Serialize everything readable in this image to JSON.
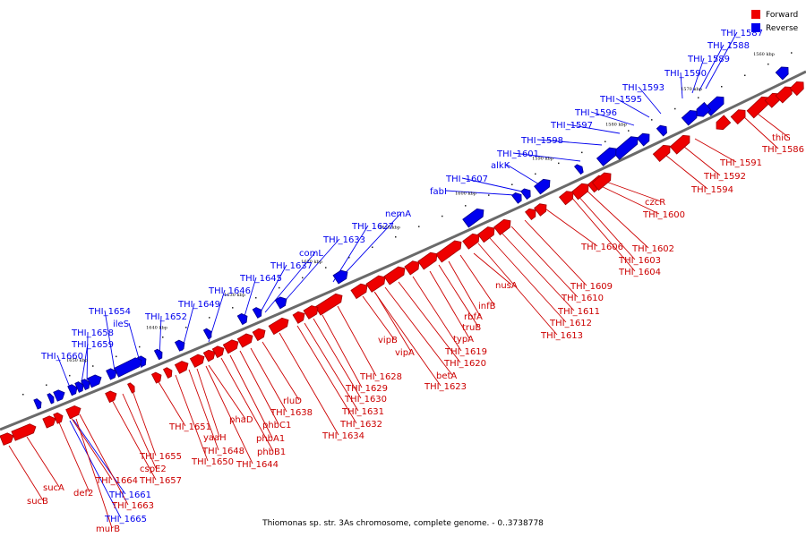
{
  "legend": [
    {
      "label": "Forward",
      "color": "#ee0000"
    },
    {
      "label": "Reverse",
      "color": "#0000ee"
    }
  ],
  "caption": "Thiomonas sp. str. 3As chromosome, complete genome. - 0..3738778",
  "kbp_ticks": [
    "1560 kbp",
    "1570 kbp",
    "1580 kbp",
    "1590 kbp",
    "1600 kbp",
    "1610 kbp",
    "1620 kbp",
    "1630 kbp",
    "1640 kbp",
    "1650 kbp"
  ],
  "reverse_labels": [
    "THI_1587",
    "THI_1588",
    "THI_1589",
    "THI_1590",
    "THI_1593",
    "THI_1595",
    "THI_1596",
    "THI_1597",
    "THI_1598",
    "THI_1601",
    "alkK",
    "THI_1607",
    "fabI",
    "nemA",
    "THI_1627",
    "THI_1633",
    "comL",
    "THI_1637",
    "THI_1645",
    "THI_1646",
    "THI_1649",
    "THI_1652",
    "ileS",
    "THI_1654",
    "THI_1658",
    "THI_1659",
    "THI_1660",
    "THI_1661",
    "THI_1665"
  ],
  "forward_labels": [
    "thiG",
    "THI_1586",
    "THI_1591",
    "THI_1592",
    "THI_1594",
    "czcR",
    "THI_1600",
    "THI_1602",
    "THI_1603",
    "THI_1604",
    "THI_1606",
    "THI_1609",
    "THI_1610",
    "THI_1611",
    "THI_1612",
    "THI_1613",
    "nusA",
    "infB",
    "rbfA",
    "truB",
    "typA",
    "THI_1619",
    "THI_1620",
    "betA",
    "THI_1623",
    "vipB",
    "vipA",
    "THI_1628",
    "THI_1629",
    "THI_1630",
    "THI_1631",
    "THI_1632",
    "THI_1634",
    "rluD",
    "THI_1638",
    "phbC1",
    "phbA1",
    "phbB1",
    "phaD",
    "THI_1644",
    "yaaH",
    "THI_1648",
    "THI_1650",
    "THI_1651",
    "THI_1655",
    "cspE2",
    "THI_1657",
    "THI_1664",
    "THI_1663",
    "def2",
    "murB",
    "sucA",
    "sucB"
  ]
}
